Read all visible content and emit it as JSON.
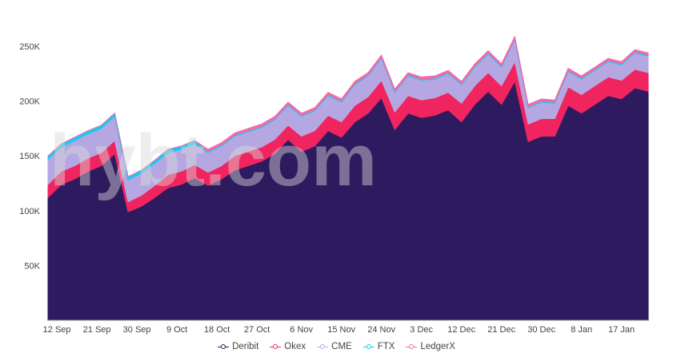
{
  "chart_data": {
    "type": "area",
    "stacked": true,
    "title": "",
    "xlabel": "",
    "ylabel": "",
    "start_date": "10 Sep",
    "step_days": 3,
    "x_range_days": [
      0,
      135
    ],
    "ylim": [
      0,
      250000
    ],
    "y_ticks": [
      {
        "value": 50000,
        "label": "50K"
      },
      {
        "value": 100000,
        "label": "100K"
      },
      {
        "value": 150000,
        "label": "150K"
      },
      {
        "value": 200000,
        "label": "200K"
      },
      {
        "value": 250000,
        "label": "250K"
      }
    ],
    "x_ticks": [
      {
        "day": 2,
        "label": "12 Sep"
      },
      {
        "day": 11,
        "label": "21 Sep"
      },
      {
        "day": 20,
        "label": "30 Sep"
      },
      {
        "day": 29,
        "label": "9 Oct"
      },
      {
        "day": 38,
        "label": "18 Oct"
      },
      {
        "day": 47,
        "label": "27 Oct"
      },
      {
        "day": 57,
        "label": "6 Nov"
      },
      {
        "day": 66,
        "label": "15 Nov"
      },
      {
        "day": 75,
        "label": "24 Nov"
      },
      {
        "day": 84,
        "label": "3 Dec"
      },
      {
        "day": 93,
        "label": "12 Dec"
      },
      {
        "day": 102,
        "label": "21 Dec"
      },
      {
        "day": 111,
        "label": "30 Dec"
      },
      {
        "day": 120,
        "label": "8 Jan"
      },
      {
        "day": 129,
        "label": "17 Jan"
      }
    ],
    "legend_position": "bottom",
    "series": [
      {
        "name": "Deribit",
        "color": "#2e1a5e",
        "values": [
          112,
          124,
          129,
          136,
          141,
          152,
          99,
          104,
          112,
          121,
          124,
          130,
          123,
          129,
          137,
          141,
          145,
          152,
          165,
          154,
          159,
          173,
          167,
          181,
          189,
          203,
          174,
          189,
          185,
          187,
          192,
          181,
          197,
          209,
          197,
          218,
          163,
          168,
          168,
          196,
          189,
          197,
          205,
          202,
          212,
          209
        ]
      },
      {
        "name": "Okex",
        "color": "#f0245e",
        "values": [
          12,
          12,
          12,
          12,
          12,
          12,
          9,
          10,
          11,
          12,
          12,
          12,
          12,
          12,
          13,
          13,
          13,
          13,
          13,
          14,
          14,
          14,
          14,
          15,
          15,
          16,
          16,
          16,
          16,
          16,
          16,
          17,
          17,
          17,
          17,
          18,
          16,
          16,
          16,
          17,
          17,
          17,
          17,
          17,
          17,
          17
        ]
      },
      {
        "name": "CME",
        "color": "#b5a8e2",
        "values": [
          23,
          22,
          23,
          22,
          22,
          22,
          20,
          20,
          20,
          20,
          20,
          19,
          18,
          18,
          18,
          18,
          18,
          18,
          18,
          18,
          18,
          18,
          18,
          19,
          19,
          20,
          18,
          18,
          18,
          17,
          17,
          17,
          17,
          17,
          17,
          20,
          15,
          15,
          14,
          14,
          14,
          14,
          14,
          14,
          15,
          15
        ]
      },
      {
        "name": "FTX",
        "color": "#1ec8f0",
        "values": [
          3,
          3,
          3,
          3,
          3,
          3,
          3,
          3,
          3,
          3,
          3,
          3,
          1,
          1,
          1,
          1,
          1,
          1,
          1,
          1,
          1,
          1,
          1,
          1,
          1,
          1,
          1,
          1,
          1,
          1,
          1,
          1,
          1,
          1,
          1,
          1,
          1,
          1,
          1,
          1,
          1,
          1,
          1,
          1,
          1,
          1
        ]
      },
      {
        "name": "LedgerX",
        "color": "#f26aa8",
        "values": [
          0,
          0,
          0,
          0,
          0,
          0,
          0,
          0,
          0,
          0,
          0,
          0,
          2,
          2,
          2,
          2,
          2,
          2,
          2,
          2,
          2,
          2,
          2,
          2,
          2,
          2,
          2,
          2,
          2,
          2,
          2,
          2,
          2,
          2,
          2,
          2,
          2,
          2,
          2,
          2,
          2,
          2,
          2,
          2,
          2,
          2
        ]
      }
    ],
    "value_unit": "K",
    "watermark": "hybt.com"
  }
}
